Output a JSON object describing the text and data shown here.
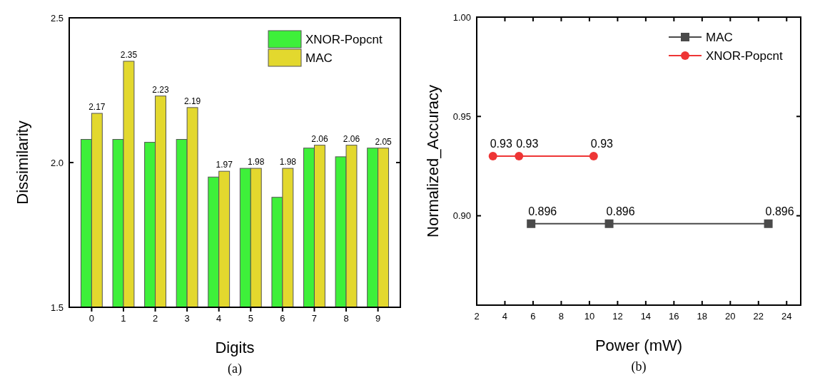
{
  "chart_data": [
    {
      "type": "bar",
      "xlabel": "Digits",
      "ylabel": "Dissimilarity",
      "annotations": [
        "(a)"
      ],
      "categories": [
        "0",
        "1",
        "2",
        "3",
        "4",
        "5",
        "6",
        "7",
        "8",
        "9"
      ],
      "series": [
        {
          "name": "XNOR-Popcnt",
          "color": "#3ef03a",
          "values": [
            2.08,
            2.08,
            2.07,
            2.08,
            1.95,
            1.98,
            1.88,
            2.05,
            2.02,
            2.05
          ]
        },
        {
          "name": "MAC",
          "color": "#e3d82e",
          "values": [
            2.17,
            2.35,
            2.23,
            2.19,
            1.97,
            1.98,
            1.98,
            2.06,
            2.06,
            2.05
          ],
          "value_labels": [
            "2.17",
            "2.35",
            "2.23",
            "2.19",
            "1.97",
            "1.98",
            "1.98",
            "2.06",
            "2.06",
            "2.05"
          ]
        }
      ],
      "ylim": [
        1.5,
        2.5
      ],
      "yticks": [
        {
          "value": 1.5,
          "label": "1.5"
        },
        {
          "value": 2,
          "label": "2.0"
        },
        {
          "value": 2.5,
          "label": "2.5"
        }
      ],
      "legend": "top right",
      "grid": false
    },
    {
      "type": "line",
      "xlabel": "Power (mW)",
      "ylabel": "Normalized_Accuracy",
      "annotations": [
        "(b)"
      ],
      "series": [
        {
          "name": "MAC",
          "color": "#4a4a4a",
          "marker": "square",
          "x": [
            5.86,
            11.4,
            22.7
          ],
          "values": [
            0.896,
            0.896,
            0.896
          ]
        },
        {
          "name": "XNOR-Popcnt",
          "color": "#ee3535",
          "marker": "circle",
          "x": [
            3.15,
            5.0,
            10.3
          ],
          "values": [
            0.93,
            0.93,
            0.93
          ]
        }
      ],
      "xlim": [
        2,
        25
      ],
      "xticks": [
        2,
        4,
        6,
        8,
        10,
        12,
        14,
        16,
        18,
        20,
        22,
        24
      ],
      "ylim": [
        0.855,
        1.0
      ],
      "yticks": [
        {
          "value": 0.9,
          "label": "0.90"
        },
        {
          "value": 0.95,
          "label": "0.95"
        },
        {
          "value": 1,
          "label": "1.00"
        }
      ],
      "data_labels": true,
      "legend": "top right",
      "grid": false,
      "line_style": "solid"
    }
  ]
}
